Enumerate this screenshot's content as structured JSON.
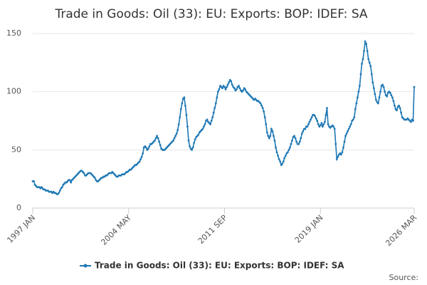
{
  "chart_data": {
    "type": "line",
    "title": "Trade in Goods: Oil (33): EU: Exports: BOP: IDEF: SA",
    "source": "Source:",
    "categories": [
      "1997 JAN",
      null,
      null,
      null,
      null,
      null,
      null,
      null,
      null,
      null,
      null,
      null,
      null,
      null,
      null,
      null,
      null,
      null,
      null,
      null,
      null,
      null,
      null,
      null,
      null,
      null,
      null,
      null,
      null,
      null,
      null,
      null,
      null,
      null,
      null,
      null,
      null,
      null,
      null,
      null,
      null,
      null,
      null,
      null,
      null,
      null,
      null,
      null,
      null,
      null,
      null,
      null,
      null,
      null,
      null,
      null,
      null,
      null,
      null,
      null,
      null,
      null,
      null,
      null,
      null,
      null,
      null,
      null,
      null,
      null,
      null,
      null,
      null,
      null,
      null,
      null,
      null,
      null,
      null,
      null,
      null,
      null,
      null,
      null,
      null,
      null,
      null,
      null,
      "2004 MAY",
      null,
      null,
      null,
      null,
      null,
      null,
      null,
      null,
      null,
      null,
      null,
      null,
      null,
      null,
      null,
      null,
      null,
      null,
      null,
      null,
      null,
      null,
      null,
      null,
      null,
      null,
      null,
      null,
      null,
      null,
      null,
      null,
      null,
      null,
      null,
      null,
      null,
      null,
      null,
      null,
      null,
      null,
      null,
      null,
      null,
      null,
      null,
      null,
      null,
      null,
      null,
      null,
      null,
      null,
      null,
      null,
      null,
      null,
      null,
      null,
      null,
      null,
      null,
      null,
      null,
      null,
      null,
      null,
      null,
      null,
      null,
      null,
      null,
      null,
      null,
      null,
      null,
      null,
      null,
      null,
      null,
      null,
      null,
      null,
      null,
      null,
      null,
      "2011 SEP",
      null,
      null,
      null,
      null,
      null,
      null,
      null,
      null,
      null,
      null,
      null,
      null,
      null,
      null,
      null,
      null,
      null,
      null,
      null,
      null,
      null,
      null,
      null,
      null,
      null,
      null,
      null,
      null,
      null,
      null,
      null,
      null,
      null,
      null,
      null,
      null,
      null,
      null,
      null,
      null,
      null,
      null,
      null,
      null,
      null,
      null,
      null,
      null,
      null,
      null,
      null,
      null,
      null,
      null,
      null,
      null,
      null,
      null,
      null,
      null,
      null,
      null,
      null,
      null,
      null,
      null,
      null,
      null,
      null,
      null,
      null,
      null,
      null,
      null,
      null,
      null,
      null,
      null,
      null,
      null,
      null,
      null,
      null,
      null,
      null,
      null,
      null,
      "2019 JAN",
      null,
      null,
      null,
      null,
      null,
      null,
      null,
      null,
      null,
      null,
      null,
      null,
      null,
      null,
      null,
      null,
      null,
      null,
      null,
      null,
      null,
      null,
      null,
      null,
      null,
      null,
      null,
      null,
      null,
      null,
      null,
      null,
      null,
      null,
      null,
      null,
      null,
      null,
      null,
      null,
      null,
      null,
      null,
      null,
      null,
      null,
      null,
      null,
      null,
      null,
      null,
      null,
      null,
      null,
      null,
      null,
      null,
      null,
      null,
      null,
      null,
      null,
      null,
      null,
      null,
      null,
      null,
      null,
      null,
      null,
      null,
      null,
      null,
      null,
      null,
      null,
      null,
      null,
      null,
      null,
      null,
      null,
      null,
      null,
      null,
      "2026 MAR"
    ],
    "series": [
      {
        "name": "Trade in Goods: Oil (33): EU: Exports: BOP: IDEF: SA",
        "color": "#1f78b4",
        "values": [
          23,
          23,
          20,
          19,
          18,
          18,
          18,
          17,
          18,
          17,
          16,
          16,
          15,
          15,
          15,
          14,
          14,
          14,
          13,
          14,
          13,
          13,
          12,
          12,
          13,
          15,
          17,
          18,
          20,
          21,
          22,
          22,
          23,
          24,
          24,
          22,
          24,
          25,
          26,
          27,
          28,
          29,
          30,
          31,
          32,
          32,
          31,
          30,
          28,
          28,
          29,
          30,
          30,
          30,
          29,
          28,
          27,
          26,
          24,
          23,
          23,
          24,
          25,
          26,
          26,
          27,
          27,
          28,
          28,
          29,
          30,
          30,
          30,
          31,
          30,
          29,
          28,
          27,
          27,
          28,
          28,
          28,
          29,
          29,
          29,
          30,
          31,
          31,
          32,
          33,
          33,
          34,
          35,
          36,
          37,
          37,
          38,
          39,
          40,
          42,
          44,
          47,
          52,
          53,
          52,
          50,
          51,
          53,
          55,
          55,
          56,
          57,
          58,
          60,
          62,
          60,
          57,
          54,
          51,
          50,
          50,
          50,
          51,
          52,
          53,
          54,
          55,
          56,
          57,
          58,
          60,
          62,
          64,
          67,
          72,
          78,
          85,
          90,
          94,
          95,
          88,
          80,
          70,
          58,
          53,
          51,
          50,
          52,
          56,
          59,
          61,
          62,
          63,
          65,
          66,
          67,
          68,
          70,
          72,
          75,
          76,
          74,
          73,
          72,
          75,
          78,
          82,
          86,
          90,
          95,
          100,
          102,
          105,
          104,
          103,
          105,
          104,
          102,
          104,
          106,
          108,
          110,
          109,
          106,
          104,
          103,
          101,
          102,
          104,
          105,
          103,
          101,
          100,
          101,
          103,
          102,
          100,
          99,
          98,
          97,
          96,
          95,
          94,
          93,
          94,
          93,
          92,
          92,
          91,
          90,
          88,
          86,
          83,
          78,
          72,
          65,
          62,
          60,
          62,
          68,
          66,
          62,
          58,
          52,
          48,
          45,
          42,
          40,
          37,
          38,
          40,
          43,
          45,
          47,
          48,
          50,
          52,
          55,
          58,
          61,
          62,
          60,
          57,
          55,
          55,
          57,
          60,
          64,
          66,
          68,
          68,
          70,
          70,
          72,
          74,
          76,
          78,
          80,
          80,
          79,
          77,
          75,
          72,
          70,
          71,
          73,
          70,
          72,
          74,
          80,
          86,
          72,
          70,
          69,
          70,
          71,
          70,
          68,
          55,
          42,
          44,
          46,
          47,
          46,
          48,
          52,
          57,
          62,
          64,
          66,
          68,
          70,
          72,
          75,
          76,
          78,
          85,
          90,
          95,
          100,
          105,
          115,
          124,
          128,
          135,
          143,
          141,
          135,
          128,
          125,
          122,
          115,
          108,
          103,
          98,
          93,
          91,
          90,
          95,
          100,
          105,
          106,
          104,
          100,
          97,
          96,
          99,
          100,
          99,
          97,
          95,
          92,
          88,
          85,
          84,
          87,
          88,
          86,
          82,
          78,
          77,
          76,
          76,
          76,
          77,
          76,
          75,
          74,
          76,
          75,
          104
        ]
      }
    ],
    "ylim": [
      0,
      150
    ],
    "yticks": [
      0,
      50,
      100,
      150
    ],
    "grid": true
  }
}
